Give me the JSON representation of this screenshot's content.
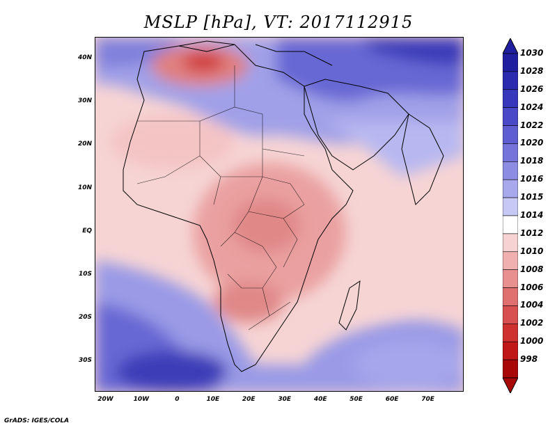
{
  "title": "MSLP [hPa], VT: 2017112915",
  "credit": "GrADS: IGES/COLA",
  "lat_labels": [
    "40N",
    "30N",
    "20N",
    "10N",
    "EQ",
    "10S",
    "20S",
    "30S"
  ],
  "lat_values": [
    40,
    30,
    20,
    10,
    0,
    -10,
    -20,
    -30
  ],
  "lon_labels": [
    "20W",
    "10W",
    "0",
    "10E",
    "20E",
    "30E",
    "40E",
    "50E",
    "60E",
    "70E"
  ],
  "lon_values": [
    -20,
    -10,
    0,
    10,
    20,
    30,
    40,
    50,
    60,
    70
  ],
  "colorbar": {
    "labels": [
      "1030",
      "1028",
      "1026",
      "1024",
      "1022",
      "1020",
      "1018",
      "1016",
      "1015",
      "1014",
      "1012",
      "1010",
      "1008",
      "1006",
      "1004",
      "1002",
      "1000",
      "998"
    ],
    "colors": [
      "#1f1fa0",
      "#2b2bb0",
      "#3838bd",
      "#4a4ac8",
      "#5e5ed2",
      "#7474db",
      "#8c8ce3",
      "#a8a8ec",
      "#c8c8f4",
      "#ffffff",
      "#f7d2d2",
      "#f0b0b0",
      "#e89090",
      "#e07070",
      "#d85050",
      "#cf3030",
      "#c01818",
      "#a80808"
    ]
  }
}
